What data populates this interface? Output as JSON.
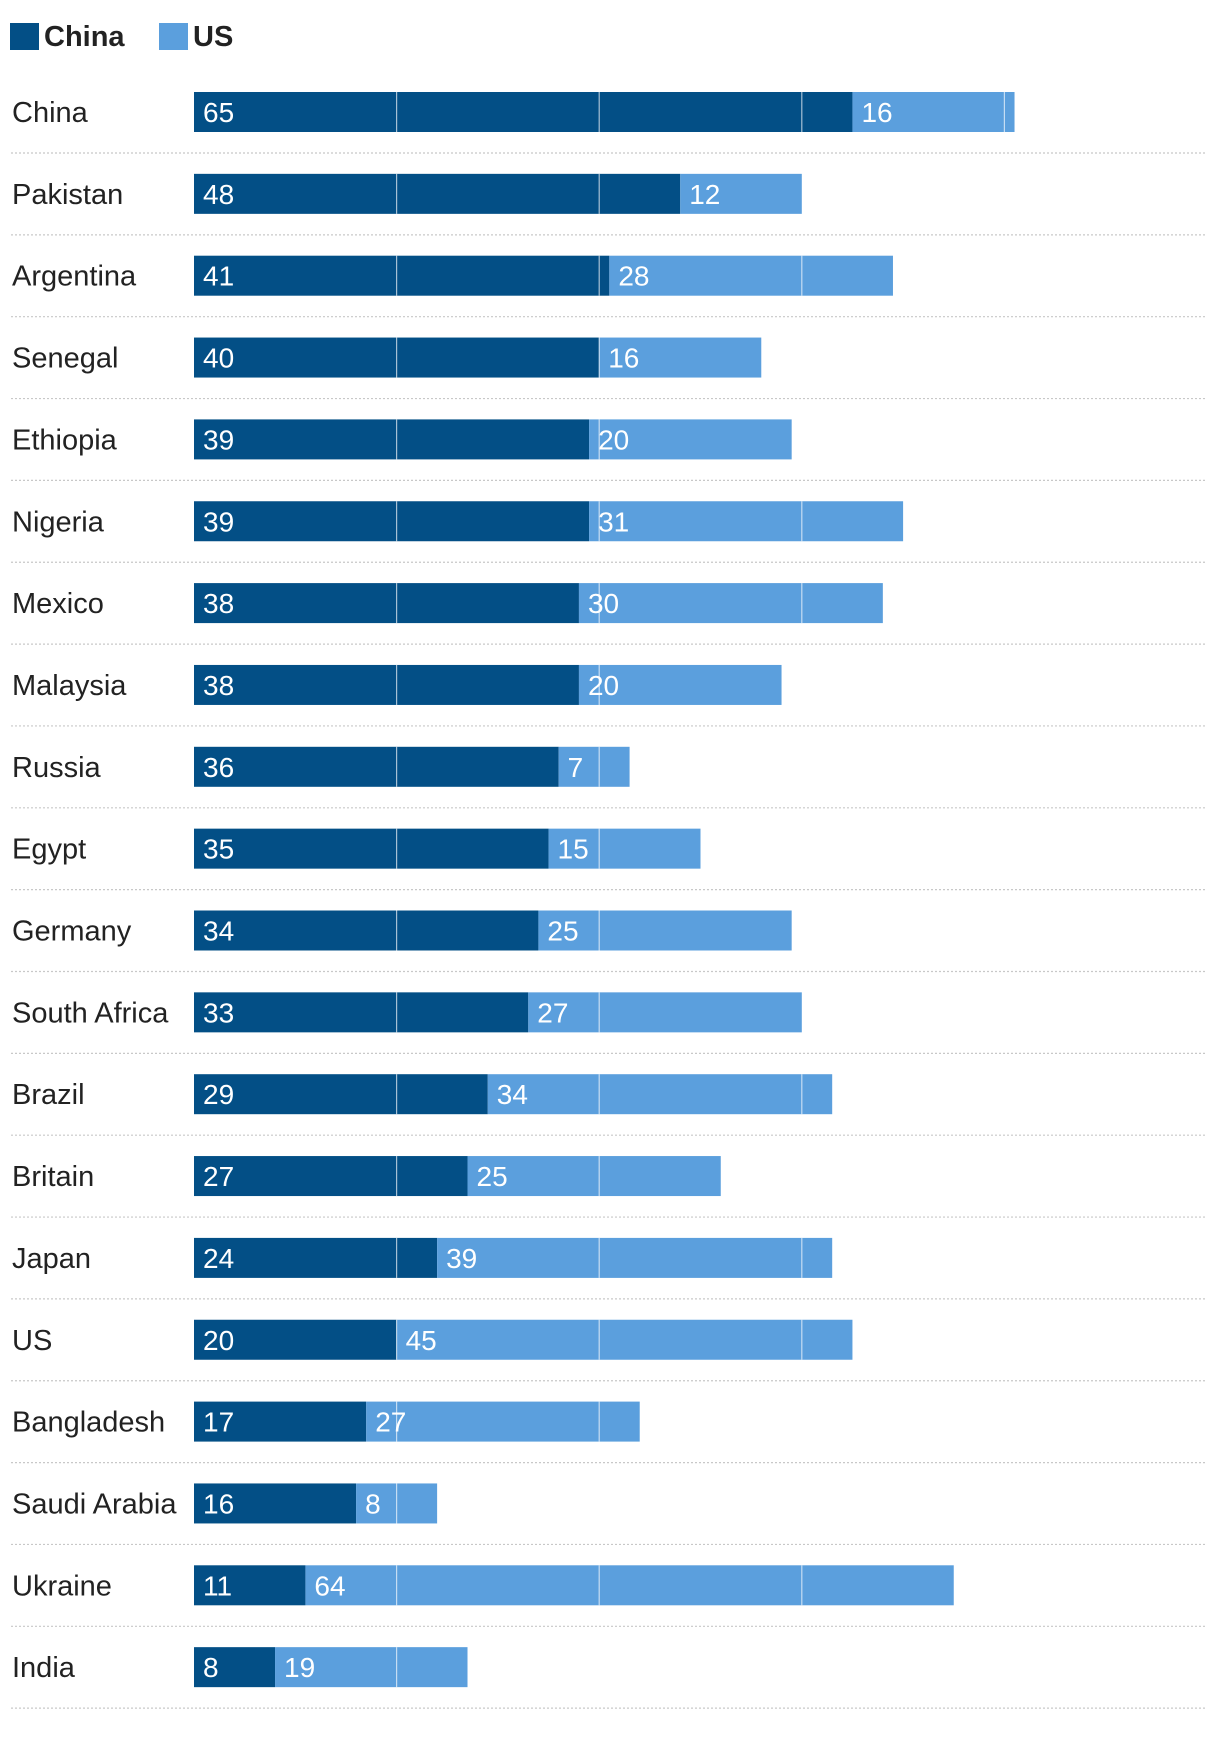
{
  "chart_data": {
    "type": "bar",
    "stacked": true,
    "orientation": "horizontal",
    "legend_position": "top-left",
    "colors": {
      "China": "#034f86",
      "US": "#5b9fdd",
      "grid": "#ffffff",
      "separator": "#c8c8c8",
      "text": "#222222",
      "tick": "#a9a9a9"
    },
    "legend": [
      {
        "name": "China",
        "color": "#034f86"
      },
      {
        "name": "US",
        "color": "#5b9fdd"
      }
    ],
    "categories": [
      "China",
      "Pakistan",
      "Argentina",
      "Senegal",
      "Ethiopia",
      "Nigeria",
      "Mexico",
      "Malaysia",
      "Russia",
      "Egypt",
      "Germany",
      "South Africa",
      "Brazil",
      "Britain",
      "Japan",
      "US",
      "Bangladesh",
      "Saudi Arabia",
      "Ukraine",
      "India"
    ],
    "series": [
      {
        "name": "China",
        "values": [
          65,
          48,
          41,
          40,
          39,
          39,
          38,
          38,
          36,
          35,
          34,
          33,
          29,
          27,
          24,
          20,
          17,
          16,
          11,
          8
        ]
      },
      {
        "name": "US",
        "values": [
          16,
          12,
          28,
          16,
          20,
          31,
          30,
          20,
          7,
          15,
          25,
          27,
          34,
          25,
          39,
          45,
          27,
          8,
          64,
          19
        ]
      }
    ],
    "xlim": [
      0,
      100
    ],
    "xticks": [
      0,
      20,
      40,
      60,
      80,
      100
    ],
    "gridlines_at": [
      20,
      40,
      60,
      80
    ],
    "title": "",
    "xlabel": "",
    "ylabel": ""
  }
}
